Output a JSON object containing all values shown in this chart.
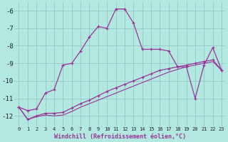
{
  "title": "",
  "xlabel": "Windchill (Refroidissement éolien,°C)",
  "ylabel": "",
  "background_color": "#b3e8e0",
  "grid_color": "#99cccc",
  "line_color": "#993399",
  "x_data": [
    0,
    1,
    2,
    3,
    4,
    5,
    6,
    7,
    8,
    9,
    10,
    11,
    12,
    13,
    14,
    15,
    16,
    17,
    18,
    19,
    20,
    21,
    22,
    23
  ],
  "series1": [
    -11.5,
    -11.7,
    -11.6,
    -10.7,
    -10.5,
    -9.1,
    -9.0,
    -8.3,
    -7.5,
    -6.9,
    -7.0,
    -5.9,
    -5.9,
    -6.7,
    -8.2,
    -8.2,
    -8.2,
    -8.3,
    -9.2,
    -9.2,
    -11.0,
    -9.1,
    -8.1,
    -9.4
  ],
  "series2": [
    -11.5,
    -12.2,
    -12.0,
    -11.85,
    -11.85,
    -11.8,
    -11.55,
    -11.3,
    -11.1,
    -10.85,
    -10.6,
    -10.4,
    -10.2,
    -10.0,
    -9.8,
    -9.6,
    -9.4,
    -9.3,
    -9.2,
    -9.1,
    -9.0,
    -8.9,
    -8.8,
    -9.4
  ],
  "series3": [
    -11.5,
    -12.2,
    -12.05,
    -11.95,
    -12.0,
    -11.95,
    -11.75,
    -11.5,
    -11.3,
    -11.1,
    -10.9,
    -10.7,
    -10.5,
    -10.3,
    -10.1,
    -9.9,
    -9.7,
    -9.5,
    -9.35,
    -9.2,
    -9.1,
    -9.0,
    -8.9,
    -9.4
  ],
  "ylim": [
    -12.6,
    -5.5
  ],
  "yticks": [
    -12,
    -11,
    -10,
    -9,
    -8,
    -7,
    -6
  ],
  "xlim": [
    -0.5,
    23.5
  ],
  "xtick_labels": [
    "0",
    "1",
    "2",
    "3",
    "4",
    "5",
    "6",
    "7",
    "8",
    "9",
    "10",
    "11",
    "12",
    "13",
    "14",
    "15",
    "16",
    "17",
    "18",
    "19",
    "20",
    "21",
    "22",
    "23"
  ],
  "font_family": "monospace",
  "xlabel_fontsize": 6.0,
  "ytick_fontsize": 6.5,
  "xtick_fontsize": 5.0
}
